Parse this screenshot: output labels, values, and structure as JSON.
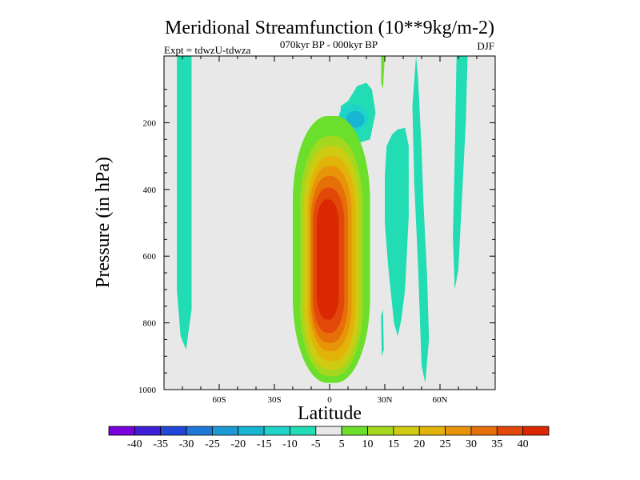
{
  "chart_data": {
    "type": "heatmap",
    "title": "Meridional Streamfunction (10**9kg/m-2)",
    "subtitle": "070kyr BP - 000kyr BP",
    "expt_label": "Expt = tdwzU-tdwza",
    "season": "DJF",
    "xlabel": "Latitude",
    "ylabel": "Pressure (in hPa)",
    "xlim": [
      -90,
      90
    ],
    "ylim": [
      1000,
      0
    ],
    "y_reversed": true,
    "x_ticks": [
      {
        "value": -60,
        "label": "60S"
      },
      {
        "value": -30,
        "label": "30S"
      },
      {
        "value": 0,
        "label": "0"
      },
      {
        "value": 30,
        "label": "30N"
      },
      {
        "value": 60,
        "label": "60N"
      }
    ],
    "y_ticks": [
      {
        "value": 200,
        "label": "200"
      },
      {
        "value": 400,
        "label": "400"
      },
      {
        "value": 600,
        "label": "600"
      },
      {
        "value": 800,
        "label": "800"
      },
      {
        "value": 1000,
        "label": "1000"
      }
    ],
    "colorbar": {
      "labels": [
        "-40",
        "-35",
        "-30",
        "-25",
        "-20",
        "-15",
        "-10",
        "-5",
        "5",
        "10",
        "15",
        "20",
        "25",
        "30",
        "35",
        "40"
      ],
      "colors": [
        "#7a00dc",
        "#3f1ed8",
        "#2247d8",
        "#1f78d8",
        "#1c9ad6",
        "#17b5d2",
        "#1ed3c8",
        "#22dcb4",
        "#e8e8e8",
        "#6cde2c",
        "#a4d81e",
        "#cecb12",
        "#e2b40a",
        "#e8940a",
        "#e67008",
        "#e2480a",
        "#dc2802"
      ]
    },
    "field_features": [
      {
        "name": "tropical positive cell",
        "center_lat": -2,
        "center_p": 620,
        "max_value": 42
      },
      {
        "name": "upper negative cell",
        "center_lat": 12,
        "center_p": 180,
        "min_value": -17
      },
      {
        "name": "southern negative strip",
        "center_lat": -79,
        "center_p": 450,
        "min_value": -8
      },
      {
        "name": "northern negative cell",
        "center_lat": 36,
        "center_p": 530,
        "min_value": -8
      }
    ]
  }
}
